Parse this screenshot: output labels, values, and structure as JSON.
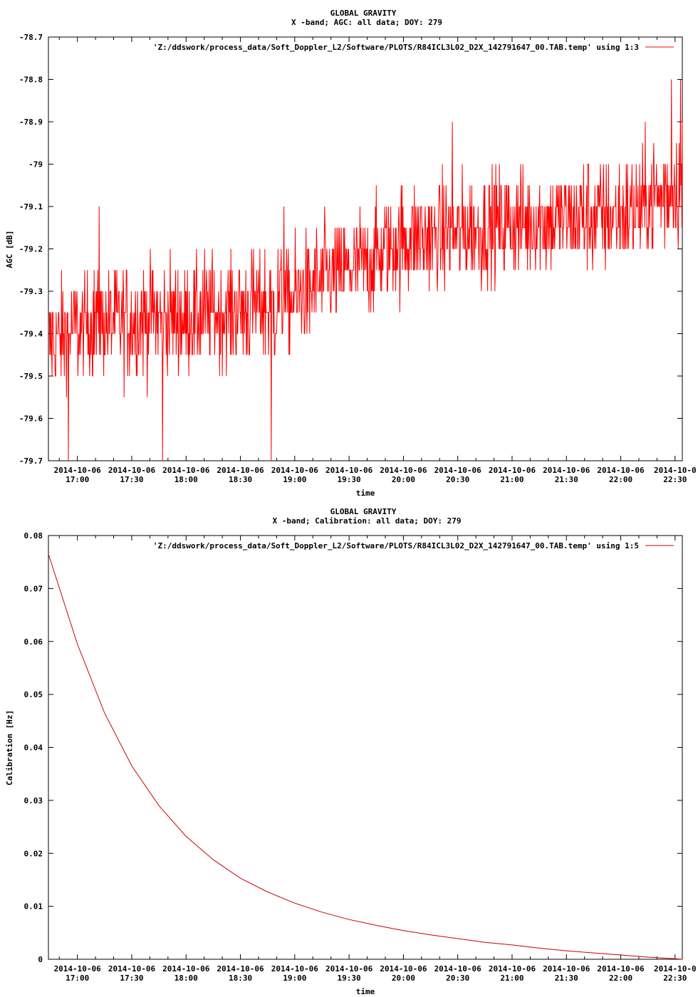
{
  "chart_data": [
    {
      "type": "line",
      "title": "GLOBAL GRAVITY",
      "subtitle": "X -band; AGC: all data; DOY: 279",
      "xlabel": "time",
      "ylabel": "AGC [dB]",
      "ylim": [
        -79.7,
        -78.7
      ],
      "yticks": [
        "-78.7",
        "-78.8",
        "-78.9",
        "-79",
        "-79.1",
        "-79.2",
        "-79.3",
        "-79.4",
        "-79.5",
        "-79.6",
        "-79.7"
      ],
      "xlim": [
        "2014-10-06 16:44",
        "2014-10-06 22:34"
      ],
      "xtick_dates": [
        "2014-10-06",
        "2014-10-06",
        "2014-10-06",
        "2014-10-06",
        "2014-10-06",
        "2014-10-06",
        "2014-10-06",
        "2014-10-06",
        "2014-10-06",
        "2014-10-06",
        "2014-10-06",
        "2014-10-0"
      ],
      "xtick_times": [
        "17:00",
        "17:30",
        "18:00",
        "18:30",
        "19:00",
        "19:30",
        "20:00",
        "20:30",
        "21:00",
        "21:30",
        "22:00",
        "22:30"
      ],
      "grid": false,
      "legend_position": "top-right",
      "line_color": "#ff0000",
      "series": [
        {
          "name": "'Z:/ddswork/process_data/Soft_Doppler_L2/Software/PLOTS/R84ICL3L02_D2X_142791647_00.TAB.temp' using 1:3",
          "pattern": "noisy, quantized to 0.05 dB steps",
          "trend_times": [
            "16:44",
            "17:10",
            "18:00",
            "18:50",
            "19:30",
            "20:00",
            "21:00",
            "22:00",
            "22:34"
          ],
          "trend_values": [
            -79.42,
            -79.37,
            -79.36,
            -79.33,
            -79.25,
            -79.18,
            -79.14,
            -79.12,
            -79.05
          ],
          "notable_spikes": [
            {
              "time": "17:12",
              "value": -79.1
            },
            {
              "time": "18:54",
              "value": -79.1
            },
            {
              "time": "20:27",
              "value": -78.9
            },
            {
              "time": "22:28",
              "value": -78.8
            },
            {
              "time": "22:33",
              "value": -78.8
            },
            {
              "time": "17:47",
              "value": -79.7
            },
            {
              "time": "16:55",
              "value": -79.7
            },
            {
              "time": "18:47",
              "value": -79.7
            }
          ]
        }
      ]
    },
    {
      "type": "line",
      "title": "GLOBAL GRAVITY",
      "subtitle": "X -band; Calibration: all data; DOY: 279",
      "xlabel": "time",
      "ylabel": "Calibration [Hz]",
      "ylim": [
        0,
        0.08
      ],
      "yticks": [
        "0.08",
        "0.07",
        "0.06",
        "0.05",
        "0.04",
        "0.03",
        "0.02",
        "0.01",
        "0"
      ],
      "xlim": [
        "2014-10-06 16:44",
        "2014-10-06 22:34"
      ],
      "xtick_dates": [
        "2014-10-06",
        "2014-10-06",
        "2014-10-06",
        "2014-10-06",
        "2014-10-06",
        "2014-10-06",
        "2014-10-06",
        "2014-10-06",
        "2014-10-06",
        "2014-10-06",
        "2014-10-06",
        "2014-10-0"
      ],
      "xtick_times": [
        "17:00",
        "17:30",
        "18:00",
        "18:30",
        "19:00",
        "19:30",
        "20:00",
        "20:30",
        "21:00",
        "21:30",
        "22:00",
        "22:30"
      ],
      "grid": false,
      "legend_position": "top-right",
      "line_color": "#cc0000",
      "series": [
        {
          "name": "'Z:/ddswork/process_data/Soft_Doppler_L2/Software/PLOTS/R84ICL3L02_D2X_142791647_00.TAB.temp' using 1:5",
          "x": [
            "16:44",
            "17:00",
            "17:15",
            "17:30",
            "17:45",
            "18:00",
            "18:15",
            "18:30",
            "18:45",
            "19:00",
            "19:15",
            "19:30",
            "19:45",
            "20:00",
            "20:15",
            "20:30",
            "20:45",
            "21:00",
            "21:15",
            "21:30",
            "21:45",
            "22:00",
            "22:15",
            "22:30",
            "22:34"
          ],
          "values": [
            0.0765,
            0.0595,
            0.0465,
            0.0365,
            0.029,
            0.0232,
            0.0188,
            0.0153,
            0.0127,
            0.0106,
            0.0089,
            0.0075,
            0.0064,
            0.0054,
            0.0046,
            0.0039,
            0.0032,
            0.0027,
            0.0021,
            0.0016,
            0.0012,
            0.0008,
            0.0004,
            0.0001,
            0.0
          ]
        }
      ]
    }
  ]
}
